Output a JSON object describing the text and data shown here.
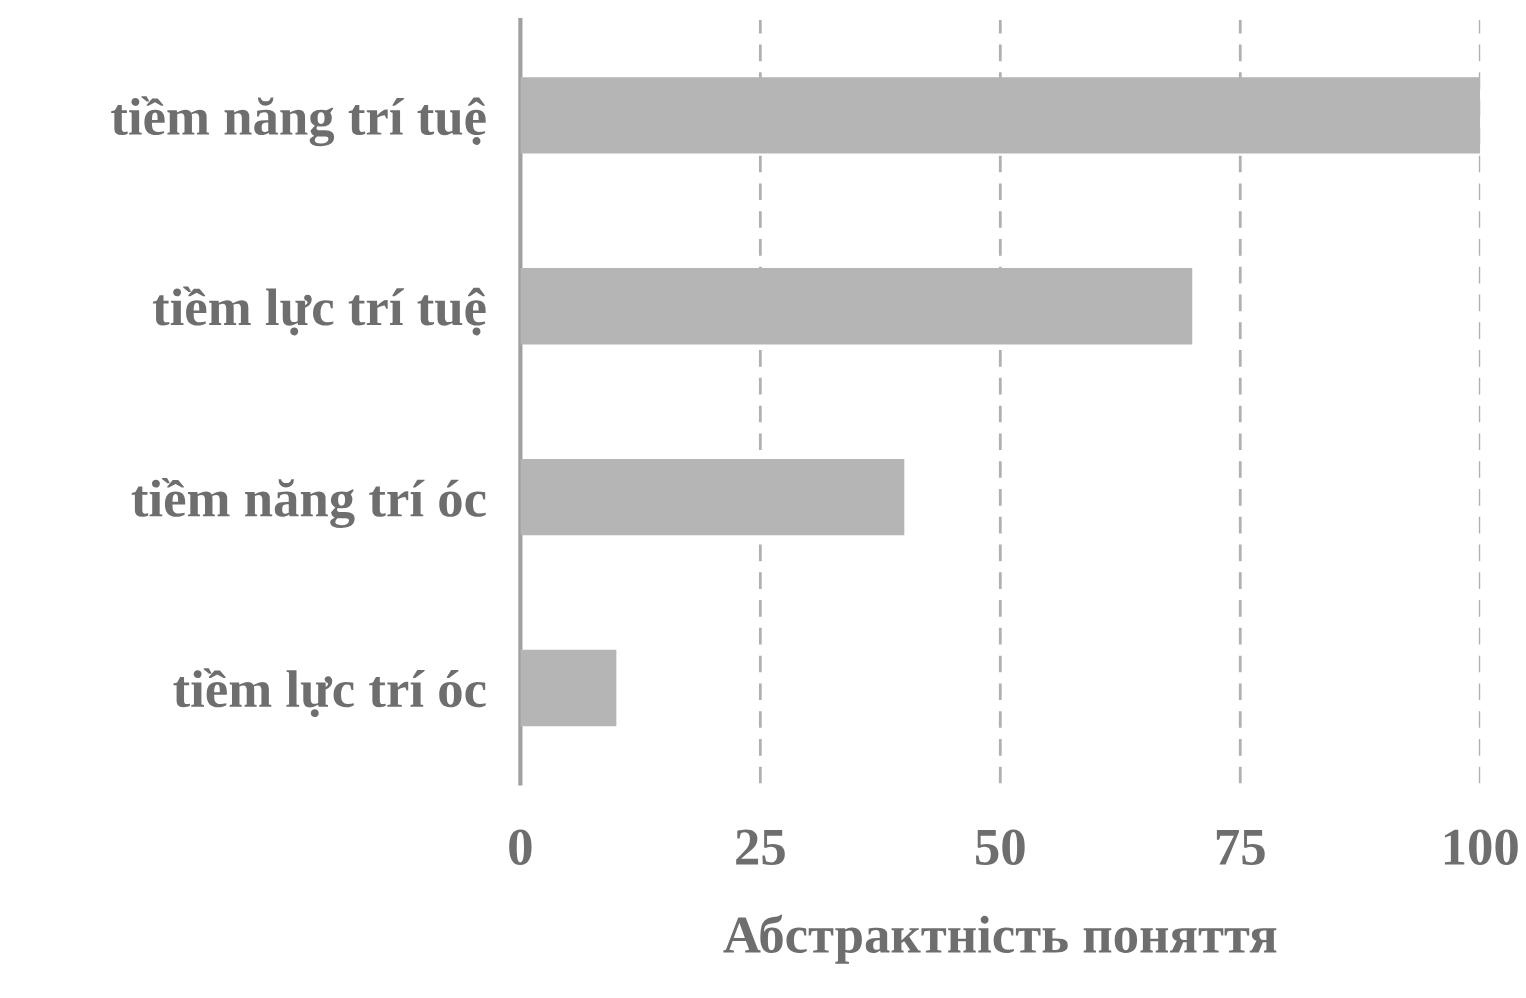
{
  "chart_data": {
    "type": "bar",
    "orientation": "horizontal",
    "xlabel": "Абстрактність поняття",
    "categories": [
      "tiềm năng trí tuệ",
      "tiềm lực trí tuệ",
      "tiềm năng trí óc",
      "tiềm lực trí óc"
    ],
    "values": [
      100,
      70,
      40,
      10
    ],
    "color": "#b5b5b5",
    "xlim": [
      0,
      100
    ],
    "xticks": [
      0,
      25,
      50,
      75,
      100
    ],
    "grid": "x",
    "legend": false
  }
}
